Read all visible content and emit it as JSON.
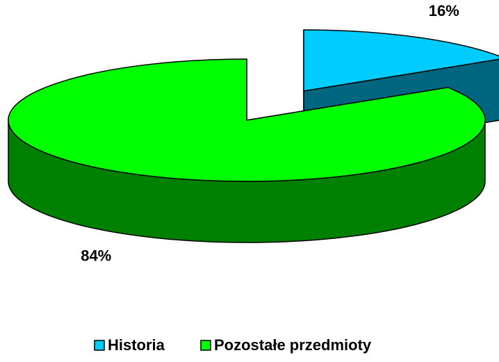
{
  "chart_data": {
    "type": "pie",
    "three_d": true,
    "categories": [
      "Historia",
      "Pozostałe przedmioty"
    ],
    "values": [
      16,
      84
    ],
    "value_labels": [
      "16%",
      "84%"
    ],
    "colors": [
      "#00ccff",
      "#00ff00"
    ],
    "explode": [
      true,
      false
    ],
    "legend": "bottom"
  }
}
